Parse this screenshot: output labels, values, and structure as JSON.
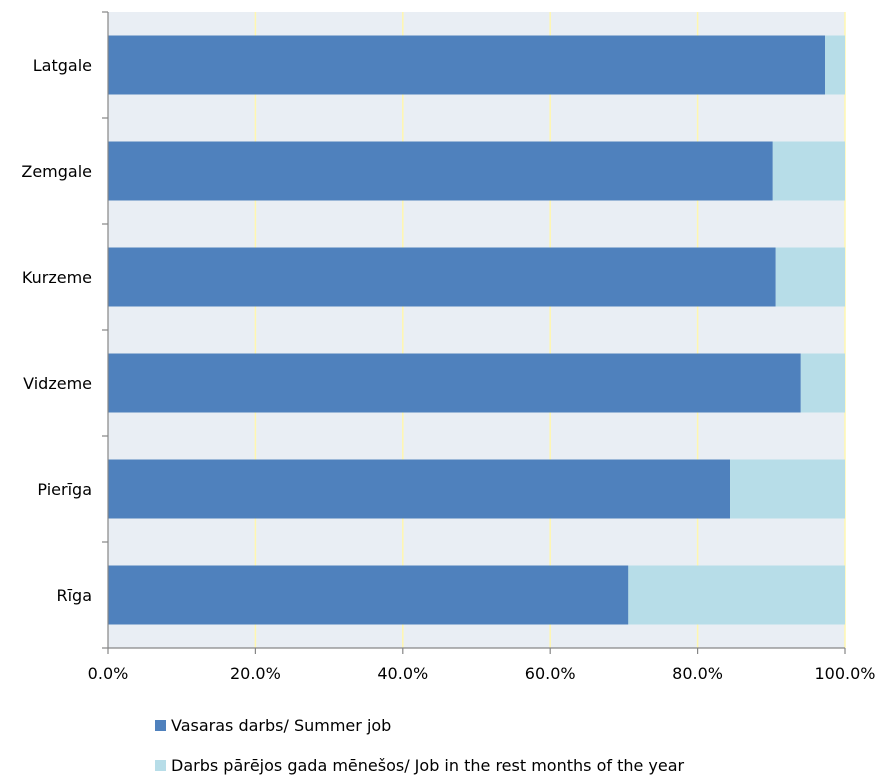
{
  "chart_data": {
    "type": "bar",
    "orientation": "horizontal",
    "stacked": true,
    "categories": [
      "Latgale",
      "Zemgale",
      "Kurzeme",
      "Vidzeme",
      "Pierīga",
      "Rīga"
    ],
    "series": [
      {
        "name": "Vasaras darbs/ Summer job",
        "values": [
          97.3,
          90.2,
          90.6,
          94.0,
          84.4,
          70.6
        ],
        "color": "#4f81bd"
      },
      {
        "name": "Darbs pārējos gada mēnešos/ Job in the rest months of the year",
        "values": [
          2.7,
          9.8,
          9.4,
          6.0,
          15.6,
          29.4
        ],
        "color": "#b7dde8"
      }
    ],
    "x_ticks": [
      "0.0%",
      "20.0%",
      "40.0%",
      "60.0%",
      "80.0%",
      "100.0%"
    ],
    "xlim": [
      0,
      100
    ],
    "grid": true,
    "plot_background": "#e9eef4",
    "gridline_color": "#fff7b0",
    "legend_position": "bottom",
    "title": "",
    "xlabel": "",
    "ylabel": ""
  }
}
